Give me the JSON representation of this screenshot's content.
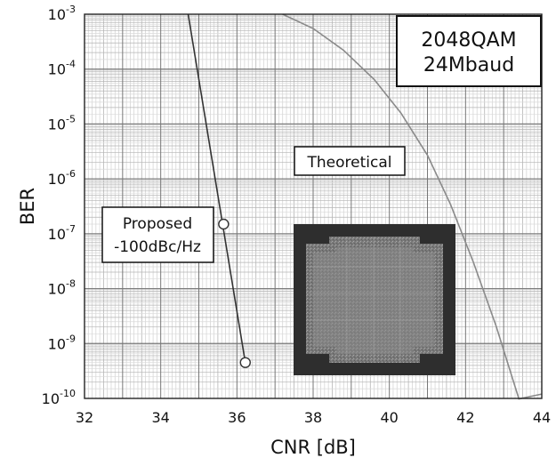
{
  "chart_data": {
    "type": "line",
    "xlabel": "CNR [dB]",
    "ylabel": "BER",
    "xlim": [
      32,
      44
    ],
    "ylim": [
      1e-10,
      0.001
    ],
    "y_scale": "log",
    "grid": true,
    "x_ticks": [
      "32",
      "34",
      "36",
      "38",
      "40",
      "42",
      "44"
    ],
    "y_ticks": [
      {
        "base": "10",
        "exp": "-3",
        "value": 0.001
      },
      {
        "base": "10",
        "exp": "-4",
        "value": 0.0001
      },
      {
        "base": "10",
        "exp": "-5",
        "value": 1e-05
      },
      {
        "base": "10",
        "exp": "-6",
        "value": 1e-06
      },
      {
        "base": "10",
        "exp": "-7",
        "value": 1e-07
      },
      {
        "base": "10",
        "exp": "-8",
        "value": 1e-08
      },
      {
        "base": "10",
        "exp": "-9",
        "value": 1e-09
      },
      {
        "base": "10",
        "exp": "-10",
        "value": 1e-10
      }
    ],
    "series": [
      {
        "name": "Proposed -100dBc/Hz",
        "color": "#333333",
        "marker": "circle",
        "points": [
          [
            35.65,
            1.5e-07
          ],
          [
            36.22,
            4.5e-10
          ]
        ],
        "line": [
          [
            34.72,
            0.001
          ],
          [
            36.22,
            4.5e-10
          ]
        ]
      },
      {
        "name": "Theoretical",
        "color": "#8a8a8a",
        "marker": "none",
        "line": [
          [
            37.2,
            0.001
          ],
          [
            38.0,
            0.00055
          ],
          [
            38.8,
            0.00022
          ],
          [
            39.6,
            6.5e-05
          ],
          [
            40.3,
            1.6e-05
          ],
          [
            41.0,
            2.7e-06
          ],
          [
            41.6,
            3.5e-07
          ],
          [
            42.2,
            3.1e-08
          ],
          [
            42.8,
            2.1e-09
          ],
          [
            43.4,
            9.8e-11
          ],
          [
            44.0,
            1.2e-10
          ]
        ]
      }
    ],
    "annotations": {
      "box_line1": "2048QAM",
      "box_line2": "24Mbaud",
      "theoretical_label": "Theoretical",
      "proposed_line1": "Proposed",
      "proposed_line2": "-100dBc/Hz"
    },
    "inset": "constellation-image"
  }
}
